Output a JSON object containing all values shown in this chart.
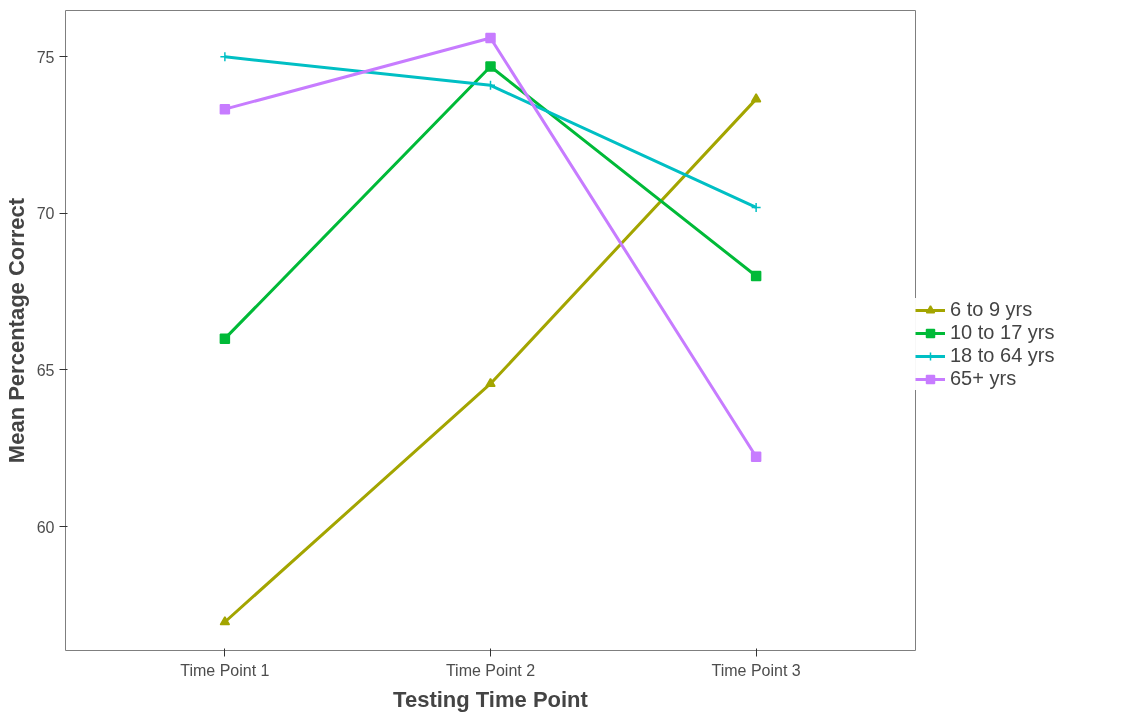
{
  "chart_data": {
    "type": "line",
    "xlabel": "Testing Time Point",
    "ylabel": "Mean Percentage Correct",
    "categories": [
      "Time Point 1",
      "Time Point 2",
      "Time Point 3"
    ],
    "series": [
      {
        "name": "6 to 9 yrs",
        "color": "#a3a500",
        "marker": "triangle",
        "values": [
          56.95,
          64.56,
          73.65
        ]
      },
      {
        "name": "10 to 17 yrs",
        "color": "#00ba38",
        "marker": "square",
        "values": [
          66.0,
          74.69,
          68.0
        ]
      },
      {
        "name": "18 to 64 yrs",
        "color": "#00bfc4",
        "marker": "cross",
        "values": [
          75.0,
          74.09,
          70.19
        ]
      },
      {
        "name": "65+ yrs",
        "color": "#c77cff",
        "marker": "square",
        "values": [
          73.33,
          75.6,
          62.23
        ]
      }
    ],
    "ylim": [
      56.04,
      76.48
    ],
    "yticks": [
      60,
      65,
      70,
      75
    ],
    "grid": false,
    "legend": "right",
    "line_style": "solid"
  }
}
